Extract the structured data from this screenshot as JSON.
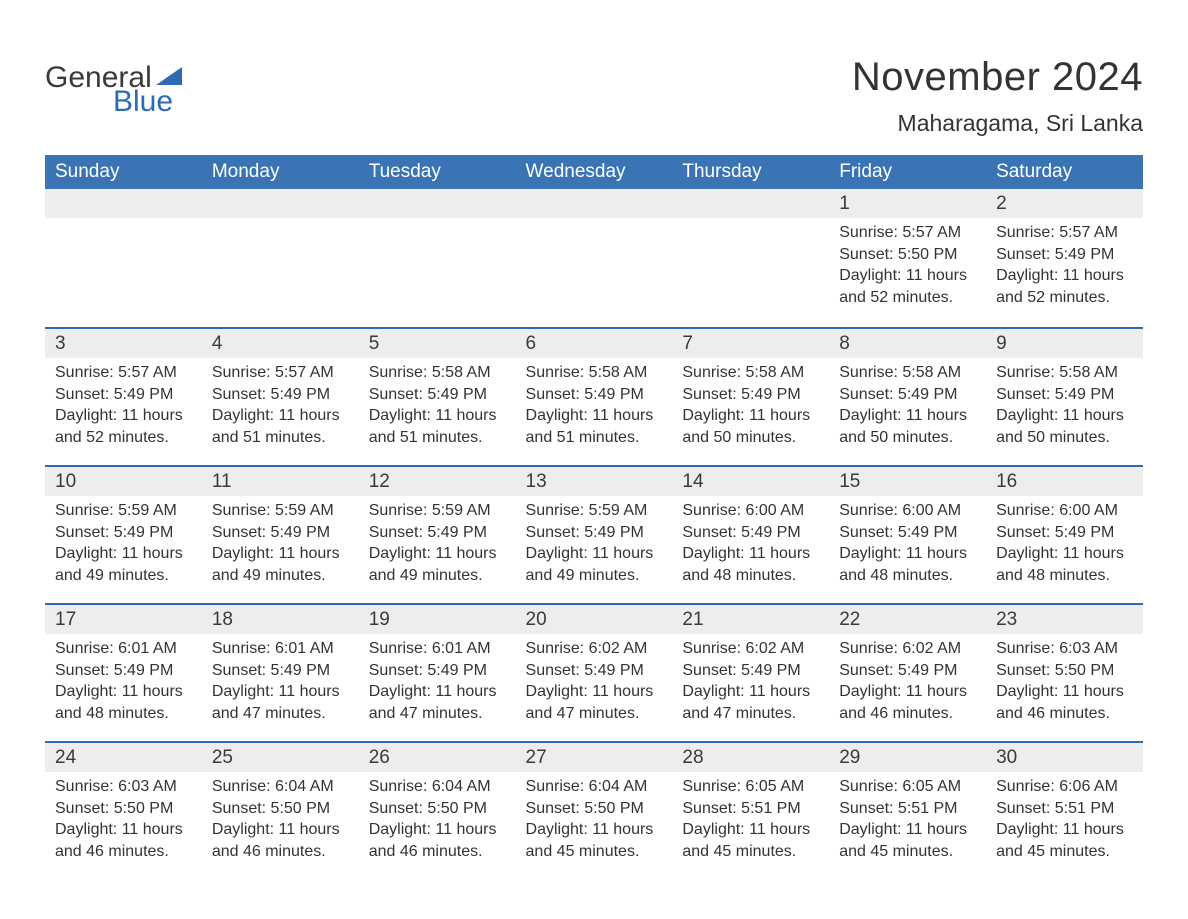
{
  "logo": {
    "text_general": "General",
    "text_blue": "Blue",
    "icon_color": "#2d6bb3"
  },
  "title": "November 2024",
  "location": "Maharagama, Sri Lanka",
  "colors": {
    "header_bg": "#3a74b4",
    "header_text": "#ffffff",
    "daynum_bg": "#ededed",
    "cell_border_top": "#2d6bb3",
    "body_text": "#333333",
    "background": "#ffffff"
  },
  "day_headers": [
    "Sunday",
    "Monday",
    "Tuesday",
    "Wednesday",
    "Thursday",
    "Friday",
    "Saturday"
  ],
  "weeks": [
    [
      {
        "empty": true
      },
      {
        "empty": true
      },
      {
        "empty": true
      },
      {
        "empty": true
      },
      {
        "empty": true
      },
      {
        "num": "1",
        "sunrise": "5:57 AM",
        "sunset": "5:50 PM",
        "daylight": "11 hours and 52 minutes."
      },
      {
        "num": "2",
        "sunrise": "5:57 AM",
        "sunset": "5:49 PM",
        "daylight": "11 hours and 52 minutes."
      }
    ],
    [
      {
        "num": "3",
        "sunrise": "5:57 AM",
        "sunset": "5:49 PM",
        "daylight": "11 hours and 52 minutes."
      },
      {
        "num": "4",
        "sunrise": "5:57 AM",
        "sunset": "5:49 PM",
        "daylight": "11 hours and 51 minutes."
      },
      {
        "num": "5",
        "sunrise": "5:58 AM",
        "sunset": "5:49 PM",
        "daylight": "11 hours and 51 minutes."
      },
      {
        "num": "6",
        "sunrise": "5:58 AM",
        "sunset": "5:49 PM",
        "daylight": "11 hours and 51 minutes."
      },
      {
        "num": "7",
        "sunrise": "5:58 AM",
        "sunset": "5:49 PM",
        "daylight": "11 hours and 50 minutes."
      },
      {
        "num": "8",
        "sunrise": "5:58 AM",
        "sunset": "5:49 PM",
        "daylight": "11 hours and 50 minutes."
      },
      {
        "num": "9",
        "sunrise": "5:58 AM",
        "sunset": "5:49 PM",
        "daylight": "11 hours and 50 minutes."
      }
    ],
    [
      {
        "num": "10",
        "sunrise": "5:59 AM",
        "sunset": "5:49 PM",
        "daylight": "11 hours and 49 minutes."
      },
      {
        "num": "11",
        "sunrise": "5:59 AM",
        "sunset": "5:49 PM",
        "daylight": "11 hours and 49 minutes."
      },
      {
        "num": "12",
        "sunrise": "5:59 AM",
        "sunset": "5:49 PM",
        "daylight": "11 hours and 49 minutes."
      },
      {
        "num": "13",
        "sunrise": "5:59 AM",
        "sunset": "5:49 PM",
        "daylight": "11 hours and 49 minutes."
      },
      {
        "num": "14",
        "sunrise": "6:00 AM",
        "sunset": "5:49 PM",
        "daylight": "11 hours and 48 minutes."
      },
      {
        "num": "15",
        "sunrise": "6:00 AM",
        "sunset": "5:49 PM",
        "daylight": "11 hours and 48 minutes."
      },
      {
        "num": "16",
        "sunrise": "6:00 AM",
        "sunset": "5:49 PM",
        "daylight": "11 hours and 48 minutes."
      }
    ],
    [
      {
        "num": "17",
        "sunrise": "6:01 AM",
        "sunset": "5:49 PM",
        "daylight": "11 hours and 48 minutes."
      },
      {
        "num": "18",
        "sunrise": "6:01 AM",
        "sunset": "5:49 PM",
        "daylight": "11 hours and 47 minutes."
      },
      {
        "num": "19",
        "sunrise": "6:01 AM",
        "sunset": "5:49 PM",
        "daylight": "11 hours and 47 minutes."
      },
      {
        "num": "20",
        "sunrise": "6:02 AM",
        "sunset": "5:49 PM",
        "daylight": "11 hours and 47 minutes."
      },
      {
        "num": "21",
        "sunrise": "6:02 AM",
        "sunset": "5:49 PM",
        "daylight": "11 hours and 47 minutes."
      },
      {
        "num": "22",
        "sunrise": "6:02 AM",
        "sunset": "5:49 PM",
        "daylight": "11 hours and 46 minutes."
      },
      {
        "num": "23",
        "sunrise": "6:03 AM",
        "sunset": "5:50 PM",
        "daylight": "11 hours and 46 minutes."
      }
    ],
    [
      {
        "num": "24",
        "sunrise": "6:03 AM",
        "sunset": "5:50 PM",
        "daylight": "11 hours and 46 minutes."
      },
      {
        "num": "25",
        "sunrise": "6:04 AM",
        "sunset": "5:50 PM",
        "daylight": "11 hours and 46 minutes."
      },
      {
        "num": "26",
        "sunrise": "6:04 AM",
        "sunset": "5:50 PM",
        "daylight": "11 hours and 46 minutes."
      },
      {
        "num": "27",
        "sunrise": "6:04 AM",
        "sunset": "5:50 PM",
        "daylight": "11 hours and 45 minutes."
      },
      {
        "num": "28",
        "sunrise": "6:05 AM",
        "sunset": "5:51 PM",
        "daylight": "11 hours and 45 minutes."
      },
      {
        "num": "29",
        "sunrise": "6:05 AM",
        "sunset": "5:51 PM",
        "daylight": "11 hours and 45 minutes."
      },
      {
        "num": "30",
        "sunrise": "6:06 AM",
        "sunset": "5:51 PM",
        "daylight": "11 hours and 45 minutes."
      }
    ]
  ],
  "labels": {
    "sunrise": "Sunrise: ",
    "sunset": "Sunset: ",
    "daylight": "Daylight: "
  }
}
